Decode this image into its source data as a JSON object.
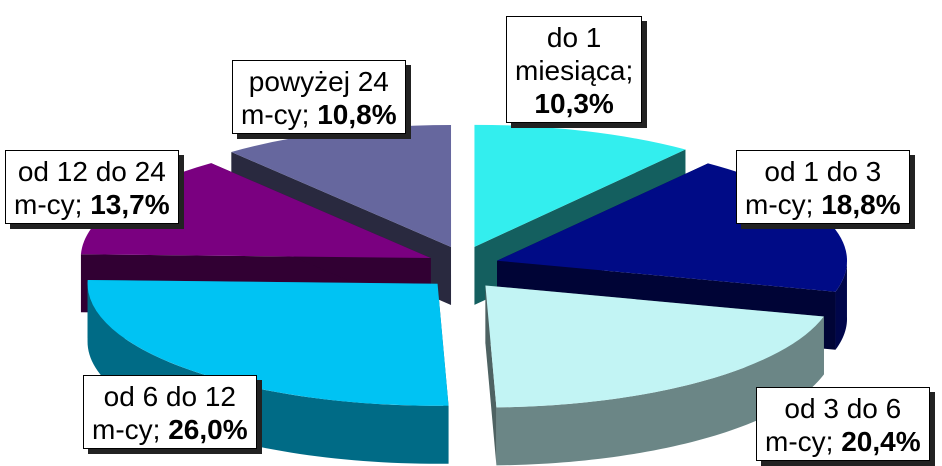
{
  "chart_data": {
    "type": "pie",
    "title": "",
    "unit": "%",
    "slices": [
      {
        "label_lines": [
          "do 1",
          "miesiąca;"
        ],
        "value_text": "10,3%",
        "value": 10.3,
        "color": "#33eeee"
      },
      {
        "label_lines": [
          "od 1 do 3"
        ],
        "label_prefix": "m-cy; ",
        "value_text": "18,8%",
        "value": 18.8,
        "color": "#000b86"
      },
      {
        "label_lines": [
          "od 3 do 6"
        ],
        "label_prefix": "m-cy; ",
        "value_text": "20,4%",
        "value": 20.4,
        "color": "#c2f4f4"
      },
      {
        "label_lines": [
          "od 6 do 12"
        ],
        "label_prefix": "m-cy; ",
        "value_text": "26,0%",
        "value": 26.0,
        "color": "#00c3f3"
      },
      {
        "label_lines": [
          "od 12 do 24"
        ],
        "label_prefix": "m-cy; ",
        "value_text": "13,7%",
        "value": 13.7,
        "color": "#7a0080"
      },
      {
        "label_lines": [
          "powyżej 24"
        ],
        "label_prefix": "m-cy; ",
        "value_text": "10,8%",
        "value": 10.8,
        "color": "#66679e"
      }
    ]
  }
}
